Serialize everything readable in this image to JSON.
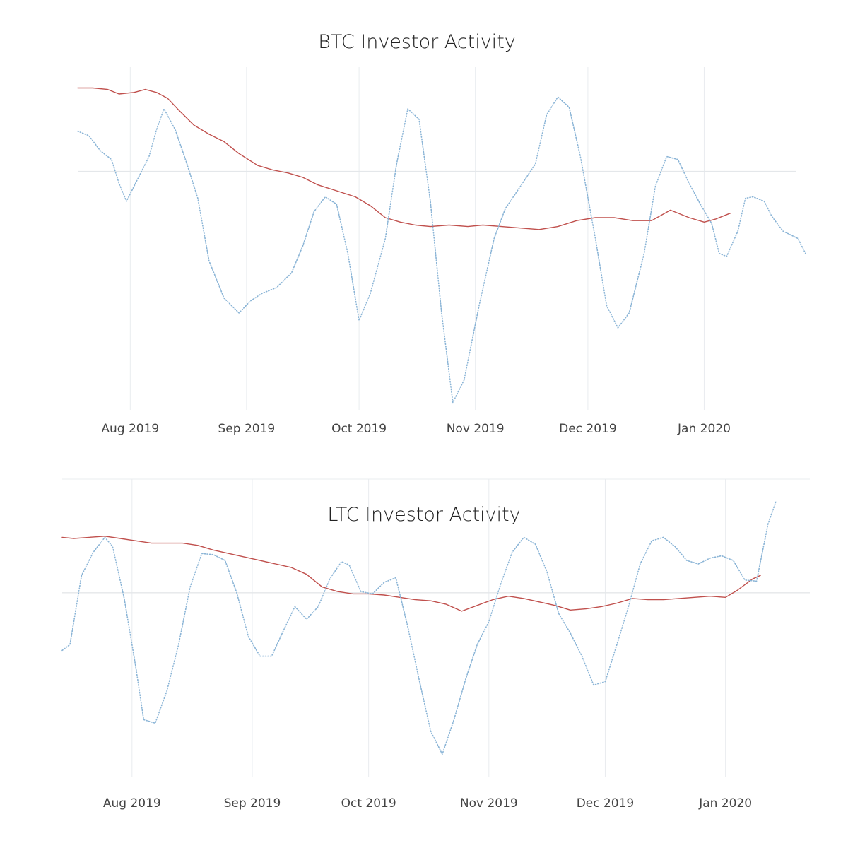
{
  "chart_data": [
    {
      "id": "btc",
      "type": "line",
      "title": "BTC Investor Activity",
      "xlabel": "",
      "ylabel": "",
      "x_ticks": [
        "Aug 2019",
        "Sep 2019",
        "Oct 2019",
        "Nov 2019",
        "Dec 2019",
        "Jan 2020"
      ],
      "x_tick_dates": [
        "2019-08-01",
        "2019-09-01",
        "2019-10-01",
        "2019-11-01",
        "2019-12-01",
        "2020-01-01"
      ],
      "xlim": [
        "2019-07-18",
        "2020-01-19"
      ],
      "ylim": [
        -1.6,
        0.7
      ],
      "zero_line": true,
      "grid": "vertical",
      "legend": "none",
      "series": [
        {
          "color": "#c0504d",
          "style": "solid",
          "points": [
            [
              "2019-07-18",
              0.56
            ],
            [
              "2019-07-22",
              0.56
            ],
            [
              "2019-07-26",
              0.55
            ],
            [
              "2019-07-29",
              0.52
            ],
            [
              "2019-08-02",
              0.53
            ],
            [
              "2019-08-05",
              0.55
            ],
            [
              "2019-08-08",
              0.53
            ],
            [
              "2019-08-11",
              0.49
            ],
            [
              "2019-08-14",
              0.41
            ],
            [
              "2019-08-18",
              0.31
            ],
            [
              "2019-08-22",
              0.25
            ],
            [
              "2019-08-26",
              0.2
            ],
            [
              "2019-08-30",
              0.12
            ],
            [
              "2019-09-04",
              0.04
            ],
            [
              "2019-09-08",
              0.01
            ],
            [
              "2019-09-12",
              -0.01
            ],
            [
              "2019-09-16",
              -0.04
            ],
            [
              "2019-09-20",
              -0.09
            ],
            [
              "2019-09-25",
              -0.13
            ],
            [
              "2019-09-30",
              -0.17
            ],
            [
              "2019-10-04",
              -0.23
            ],
            [
              "2019-10-08",
              -0.31
            ],
            [
              "2019-10-12",
              -0.34
            ],
            [
              "2019-10-16",
              -0.36
            ],
            [
              "2019-10-20",
              -0.37
            ],
            [
              "2019-10-25",
              -0.36
            ],
            [
              "2019-10-30",
              -0.37
            ],
            [
              "2019-11-03",
              -0.36
            ],
            [
              "2019-11-08",
              -0.37
            ],
            [
              "2019-11-13",
              -0.38
            ],
            [
              "2019-11-18",
              -0.39
            ],
            [
              "2019-11-23",
              -0.37
            ],
            [
              "2019-11-28",
              -0.33
            ],
            [
              "2019-12-03",
              -0.31
            ],
            [
              "2019-12-08",
              -0.31
            ],
            [
              "2019-12-13",
              -0.33
            ],
            [
              "2019-12-18",
              -0.33
            ],
            [
              "2019-12-23",
              -0.26
            ],
            [
              "2019-12-28",
              -0.31
            ],
            [
              "2020-01-01",
              -0.34
            ],
            [
              "2020-01-04",
              -0.32
            ],
            [
              "2020-01-08",
              -0.28
            ]
          ]
        },
        {
          "color": "#8ab4d6",
          "style": "dotted",
          "points": [
            [
              "2019-07-18",
              0.27
            ],
            [
              "2019-07-21",
              0.24
            ],
            [
              "2019-07-24",
              0.14
            ],
            [
              "2019-07-27",
              0.08
            ],
            [
              "2019-07-29",
              -0.08
            ],
            [
              "2019-07-31",
              -0.2
            ],
            [
              "2019-08-03",
              -0.05
            ],
            [
              "2019-08-06",
              0.1
            ],
            [
              "2019-08-08",
              0.28
            ],
            [
              "2019-08-10",
              0.42
            ],
            [
              "2019-08-13",
              0.28
            ],
            [
              "2019-08-16",
              0.06
            ],
            [
              "2019-08-19",
              -0.18
            ],
            [
              "2019-08-22",
              -0.6
            ],
            [
              "2019-08-26",
              -0.85
            ],
            [
              "2019-08-30",
              -0.95
            ],
            [
              "2019-09-02",
              -0.87
            ],
            [
              "2019-09-05",
              -0.82
            ],
            [
              "2019-09-09",
              -0.78
            ],
            [
              "2019-09-13",
              -0.68
            ],
            [
              "2019-09-16",
              -0.5
            ],
            [
              "2019-09-19",
              -0.27
            ],
            [
              "2019-09-22",
              -0.17
            ],
            [
              "2019-09-25",
              -0.22
            ],
            [
              "2019-09-28",
              -0.55
            ],
            [
              "2019-10-01",
              -1.0
            ],
            [
              "2019-10-04",
              -0.82
            ],
            [
              "2019-10-08",
              -0.45
            ],
            [
              "2019-10-11",
              0.05
            ],
            [
              "2019-10-14",
              0.42
            ],
            [
              "2019-10-17",
              0.35
            ],
            [
              "2019-10-20",
              -0.2
            ],
            [
              "2019-10-23",
              -0.95
            ],
            [
              "2019-10-26",
              -1.55
            ],
            [
              "2019-10-29",
              -1.4
            ],
            [
              "2019-11-02",
              -0.9
            ],
            [
              "2019-11-06",
              -0.45
            ],
            [
              "2019-11-09",
              -0.25
            ],
            [
              "2019-11-13",
              -0.1
            ],
            [
              "2019-11-17",
              0.05
            ],
            [
              "2019-11-20",
              0.38
            ],
            [
              "2019-11-23",
              0.5
            ],
            [
              "2019-11-26",
              0.43
            ],
            [
              "2019-11-29",
              0.1
            ],
            [
              "2019-12-03",
              -0.45
            ],
            [
              "2019-12-06",
              -0.9
            ],
            [
              "2019-12-09",
              -1.05
            ],
            [
              "2019-12-12",
              -0.95
            ],
            [
              "2019-12-16",
              -0.55
            ],
            [
              "2019-12-19",
              -0.1
            ],
            [
              "2019-12-22",
              0.1
            ],
            [
              "2019-12-25",
              0.08
            ],
            [
              "2019-12-28",
              -0.08
            ],
            [
              "2019-12-31",
              -0.22
            ],
            [
              "2020-01-03",
              -0.35
            ],
            [
              "2020-01-05",
              -0.55
            ],
            [
              "2020-01-07",
              -0.57
            ],
            [
              "2020-01-10",
              -0.4
            ],
            [
              "2020-01-12",
              -0.18
            ],
            [
              "2020-01-14",
              -0.17
            ],
            [
              "2020-01-17",
              -0.2
            ],
            [
              "2020-01-19",
              -0.3
            ],
            [
              "2020-01-22",
              -0.4
            ],
            [
              "2020-01-26",
              -0.45
            ],
            [
              "2020-01-28",
              -0.55
            ]
          ]
        }
      ]
    },
    {
      "id": "ltc",
      "type": "line",
      "title": "LTC Investor Activity",
      "xlabel": "",
      "ylabel": "",
      "x_ticks": [
        "Aug 2019",
        "Sep 2019",
        "Oct 2019",
        "Nov 2019",
        "Dec 2019",
        "Jan 2020"
      ],
      "x_tick_dates": [
        "2019-08-01",
        "2019-09-01",
        "2019-10-01",
        "2019-11-01",
        "2019-12-01",
        "2020-01-01"
      ],
      "xlim": [
        "2019-07-14",
        "2020-01-14"
      ],
      "ylim": [
        -1.6,
        0.85
      ],
      "zero_line": true,
      "grid": "vertical",
      "legend": "none",
      "series": [
        {
          "color": "#c0504d",
          "style": "solid",
          "points": [
            [
              "2019-07-14",
              0.48
            ],
            [
              "2019-07-17",
              0.47
            ],
            [
              "2019-07-21",
              0.48
            ],
            [
              "2019-07-25",
              0.49
            ],
            [
              "2019-07-29",
              0.47
            ],
            [
              "2019-08-02",
              0.45
            ],
            [
              "2019-08-06",
              0.43
            ],
            [
              "2019-08-10",
              0.43
            ],
            [
              "2019-08-14",
              0.43
            ],
            [
              "2019-08-18",
              0.41
            ],
            [
              "2019-08-22",
              0.37
            ],
            [
              "2019-08-26",
              0.34
            ],
            [
              "2019-08-30",
              0.31
            ],
            [
              "2019-09-03",
              0.28
            ],
            [
              "2019-09-07",
              0.25
            ],
            [
              "2019-09-11",
              0.22
            ],
            [
              "2019-09-15",
              0.16
            ],
            [
              "2019-09-19",
              0.05
            ],
            [
              "2019-09-23",
              0.01
            ],
            [
              "2019-09-27",
              -0.01
            ],
            [
              "2019-10-01",
              -0.01
            ],
            [
              "2019-10-05",
              -0.02
            ],
            [
              "2019-10-09",
              -0.04
            ],
            [
              "2019-10-13",
              -0.06
            ],
            [
              "2019-10-17",
              -0.07
            ],
            [
              "2019-10-21",
              -0.1
            ],
            [
              "2019-10-25",
              -0.16
            ],
            [
              "2019-10-29",
              -0.11
            ],
            [
              "2019-11-02",
              -0.06
            ],
            [
              "2019-11-06",
              -0.03
            ],
            [
              "2019-11-10",
              -0.05
            ],
            [
              "2019-11-14",
              -0.08
            ],
            [
              "2019-11-18",
              -0.11
            ],
            [
              "2019-11-22",
              -0.15
            ],
            [
              "2019-11-26",
              -0.14
            ],
            [
              "2019-11-30",
              -0.12
            ],
            [
              "2019-12-04",
              -0.09
            ],
            [
              "2019-12-08",
              -0.05
            ],
            [
              "2019-12-12",
              -0.06
            ],
            [
              "2019-12-16",
              -0.06
            ],
            [
              "2019-12-20",
              -0.05
            ],
            [
              "2019-12-24",
              -0.04
            ],
            [
              "2019-12-28",
              -0.03
            ],
            [
              "2020-01-01",
              -0.04
            ],
            [
              "2020-01-04",
              0.02
            ],
            [
              "2020-01-08",
              0.12
            ],
            [
              "2020-01-10",
              0.15
            ]
          ]
        },
        {
          "color": "#8ab4d6",
          "style": "dotted",
          "points": [
            [
              "2019-07-14",
              -0.5
            ],
            [
              "2019-07-16",
              -0.45
            ],
            [
              "2019-07-19",
              0.15
            ],
            [
              "2019-07-22",
              0.35
            ],
            [
              "2019-07-25",
              0.48
            ],
            [
              "2019-07-27",
              0.4
            ],
            [
              "2019-07-30",
              -0.05
            ],
            [
              "2019-08-02",
              -0.65
            ],
            [
              "2019-08-04",
              -1.1
            ],
            [
              "2019-08-07",
              -1.13
            ],
            [
              "2019-08-10",
              -0.85
            ],
            [
              "2019-08-13",
              -0.45
            ],
            [
              "2019-08-16",
              0.05
            ],
            [
              "2019-08-19",
              0.34
            ],
            [
              "2019-08-22",
              0.33
            ],
            [
              "2019-08-25",
              0.28
            ],
            [
              "2019-08-28",
              0.0
            ],
            [
              "2019-08-31",
              -0.38
            ],
            [
              "2019-09-03",
              -0.55
            ],
            [
              "2019-09-06",
              -0.55
            ],
            [
              "2019-09-09",
              -0.33
            ],
            [
              "2019-09-12",
              -0.12
            ],
            [
              "2019-09-15",
              -0.23
            ],
            [
              "2019-09-18",
              -0.12
            ],
            [
              "2019-09-21",
              0.12
            ],
            [
              "2019-09-24",
              0.27
            ],
            [
              "2019-09-26",
              0.24
            ],
            [
              "2019-09-29",
              0.01
            ],
            [
              "2019-10-02",
              -0.01
            ],
            [
              "2019-10-05",
              0.09
            ],
            [
              "2019-10-08",
              0.13
            ],
            [
              "2019-10-11",
              -0.28
            ],
            [
              "2019-10-14",
              -0.75
            ],
            [
              "2019-10-17",
              -1.2
            ],
            [
              "2019-10-20",
              -1.4
            ],
            [
              "2019-10-23",
              -1.1
            ],
            [
              "2019-10-26",
              -0.75
            ],
            [
              "2019-10-29",
              -0.45
            ],
            [
              "2019-11-01",
              -0.25
            ],
            [
              "2019-11-04",
              0.07
            ],
            [
              "2019-11-07",
              0.35
            ],
            [
              "2019-11-10",
              0.48
            ],
            [
              "2019-11-13",
              0.42
            ],
            [
              "2019-11-16",
              0.18
            ],
            [
              "2019-11-19",
              -0.18
            ],
            [
              "2019-11-22",
              -0.35
            ],
            [
              "2019-11-25",
              -0.55
            ],
            [
              "2019-11-28",
              -0.8
            ],
            [
              "2019-12-01",
              -0.77
            ],
            [
              "2019-12-04",
              -0.45
            ],
            [
              "2019-12-07",
              -0.12
            ],
            [
              "2019-12-10",
              0.25
            ],
            [
              "2019-12-13",
              0.45
            ],
            [
              "2019-12-16",
              0.48
            ],
            [
              "2019-12-19",
              0.4
            ],
            [
              "2019-12-22",
              0.28
            ],
            [
              "2019-12-25",
              0.25
            ],
            [
              "2019-12-28",
              0.3
            ],
            [
              "2019-12-31",
              0.32
            ],
            [
              "2020-01-03",
              0.28
            ],
            [
              "2020-01-06",
              0.11
            ],
            [
              "2020-01-09",
              0.1
            ],
            [
              "2020-01-12",
              0.6
            ],
            [
              "2020-01-14",
              0.79
            ]
          ]
        }
      ]
    }
  ]
}
